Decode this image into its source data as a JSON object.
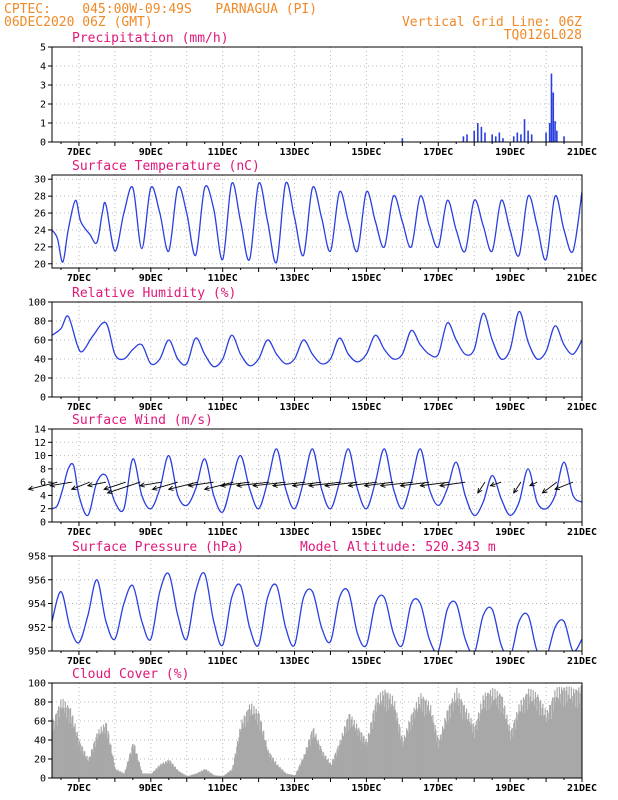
{
  "header": {
    "line1": "CPTEC:    045:00W-09:49S   PARNAGUA (PI)",
    "line2": "06DEC2020 06Z (GMT)",
    "grid_note": "Vertical Grid Line: 06Z",
    "code": "TQ0126L028"
  },
  "x_axis": {
    "start_day": 6.25,
    "end_day": 21.0,
    "major_labels": [
      "7DEC",
      "9DEC",
      "11DEC",
      "13DEC",
      "15DEC",
      "17DEC",
      "19DEC",
      "21DEC"
    ]
  },
  "colors": {
    "line": "#2a3fe0",
    "cloud": "#a8a8a8",
    "header": "#f08a28",
    "title": "#e0187a"
  },
  "chart_data": [
    {
      "type": "bar",
      "title": "Precipitation (mm/h)",
      "ylim": [
        0,
        5
      ],
      "yticks": [
        "0",
        "1",
        "2",
        "3",
        "4",
        "5"
      ],
      "series": [
        {
          "x": [
            16.0,
            17.7,
            17.8,
            18.0,
            18.1,
            18.2,
            18.3,
            18.5,
            18.6,
            18.7,
            18.8,
            19.1,
            19.2,
            19.3,
            19.4,
            19.5,
            19.6,
            20.0,
            20.1,
            20.15,
            20.2,
            20.25,
            20.3,
            20.5
          ],
          "values": [
            0.2,
            0.3,
            0.4,
            0.6,
            1.0,
            0.8,
            0.5,
            0.4,
            0.3,
            0.5,
            0.2,
            0.3,
            0.5,
            0.4,
            1.2,
            0.6,
            0.4,
            0.5,
            1.0,
            3.6,
            2.6,
            1.1,
            0.6,
            0.3
          ]
        }
      ]
    },
    {
      "type": "line",
      "title": "Surface Temperature (nC)",
      "ylim": [
        19.5,
        30.5
      ],
      "yticks": [
        "20",
        "22",
        "24",
        "26",
        "28",
        "30"
      ],
      "series": [
        {
          "x": [
            6.25,
            6.4,
            6.55,
            6.7,
            6.9,
            7.05,
            7.3,
            7.5,
            7.65,
            7.75,
            8.0,
            8.25,
            8.5,
            8.75,
            9.0,
            9.25,
            9.5,
            9.75,
            10.0,
            10.25,
            10.5,
            10.75,
            11.0,
            11.25,
            11.5,
            11.75,
            12.0,
            12.25,
            12.5,
            12.75,
            13.0,
            13.25,
            13.5,
            13.75,
            14.0,
            14.25,
            14.5,
            14.75,
            15.0,
            15.25,
            15.5,
            15.75,
            16.0,
            16.25,
            16.5,
            16.75,
            17.0,
            17.25,
            17.5,
            17.75,
            18.0,
            18.25,
            18.5,
            18.75,
            19.0,
            19.25,
            19.5,
            19.75,
            20.0,
            20.25,
            20.5,
            20.75,
            21.0
          ],
          "values": [
            24.0,
            23.0,
            20.2,
            24.0,
            27.5,
            25.0,
            23.5,
            22.5,
            26.0,
            27.0,
            21.5,
            26.0,
            29.0,
            21.8,
            29.0,
            26.0,
            21.5,
            29.0,
            26.0,
            21.0,
            29.0,
            26.5,
            20.5,
            29.5,
            25.0,
            20.5,
            29.5,
            25.0,
            20.2,
            29.5,
            25.5,
            21.0,
            29.0,
            25.5,
            21.5,
            28.5,
            25.0,
            21.5,
            28.5,
            25.0,
            22.0,
            28.0,
            25.0,
            22.0,
            28.0,
            24.5,
            22.0,
            27.5,
            24.0,
            21.5,
            27.5,
            24.5,
            21.5,
            27.5,
            24.0,
            21.0,
            28.0,
            24.5,
            20.5,
            28.0,
            24.0,
            21.5,
            28.5
          ]
        }
      ]
    },
    {
      "type": "line",
      "title": "Relative Humidity (%)",
      "ylim": [
        0,
        100
      ],
      "yticks": [
        "0",
        "20",
        "40",
        "60",
        "80",
        "100"
      ],
      "series": [
        {
          "x": [
            6.25,
            6.5,
            6.7,
            6.95,
            7.1,
            7.4,
            7.75,
            8.0,
            8.25,
            8.5,
            8.75,
            9.0,
            9.25,
            9.5,
            9.75,
            10.0,
            10.25,
            10.5,
            10.75,
            11.0,
            11.25,
            11.5,
            11.75,
            12.0,
            12.25,
            12.5,
            12.75,
            13.0,
            13.25,
            13.5,
            13.75,
            14.0,
            14.25,
            14.5,
            14.75,
            15.0,
            15.25,
            15.5,
            15.75,
            16.0,
            16.25,
            16.5,
            16.75,
            17.0,
            17.25,
            17.5,
            17.75,
            18.0,
            18.25,
            18.5,
            18.75,
            19.0,
            19.25,
            19.5,
            19.75,
            20.0,
            20.25,
            20.5,
            20.75,
            21.0
          ],
          "values": [
            65,
            72,
            85,
            55,
            48,
            65,
            78,
            45,
            40,
            50,
            55,
            35,
            40,
            60,
            40,
            35,
            62,
            45,
            32,
            40,
            65,
            45,
            33,
            40,
            60,
            45,
            35,
            40,
            60,
            45,
            35,
            40,
            62,
            45,
            37,
            45,
            65,
            50,
            40,
            45,
            70,
            55,
            45,
            45,
            78,
            60,
            45,
            50,
            88,
            60,
            40,
            50,
            90,
            58,
            40,
            48,
            75,
            55,
            45,
            60
          ]
        }
      ]
    },
    {
      "type": "line",
      "title": "Surface Wind (m/s)",
      "ylim": [
        0,
        14
      ],
      "yticks": [
        "0",
        "2",
        "4",
        "6",
        "8",
        "10",
        "12",
        "14"
      ],
      "series": [
        {
          "x": [
            6.25,
            6.4,
            6.55,
            6.7,
            6.85,
            7.0,
            7.25,
            7.5,
            7.75,
            8.0,
            8.25,
            8.5,
            8.75,
            9.0,
            9.25,
            9.5,
            9.75,
            10.0,
            10.25,
            10.5,
            10.75,
            11.0,
            11.25,
            11.5,
            11.75,
            12.0,
            12.25,
            12.5,
            12.75,
            13.0,
            13.25,
            13.5,
            13.75,
            14.0,
            14.25,
            14.5,
            14.75,
            15.0,
            15.25,
            15.5,
            15.75,
            16.0,
            16.25,
            16.5,
            16.75,
            17.0,
            17.25,
            17.5,
            17.75,
            18.0,
            18.25,
            18.5,
            18.75,
            19.0,
            19.25,
            19.5,
            19.75,
            20.0,
            20.25,
            20.5,
            20.75,
            21.0
          ],
          "values": [
            2.0,
            2.5,
            5.0,
            8.0,
            8.5,
            4.0,
            1.0,
            6.0,
            7.0,
            3.0,
            2.0,
            9.5,
            4.0,
            2.0,
            5.0,
            10.0,
            4.0,
            2.5,
            5.0,
            9.5,
            4.0,
            1.5,
            6.0,
            10.0,
            5.0,
            2.0,
            6.0,
            11.0,
            5.0,
            2.0,
            6.0,
            11.0,
            5.0,
            2.0,
            6.0,
            11.0,
            5.0,
            2.0,
            6.0,
            11.0,
            5.0,
            2.0,
            6.0,
            11.0,
            5.0,
            2.5,
            5.0,
            9.0,
            4.0,
            1.0,
            3.0,
            7.0,
            3.5,
            1.0,
            3.0,
            8.0,
            3.0,
            2.0,
            4.0,
            9.0,
            4.0,
            3.0
          ]
        }
      ],
      "wind_vectors": {
        "x": [
          6.4,
          6.8,
          7.3,
          7.75,
          8.3,
          8.7,
          9.3,
          9.75,
          10.3,
          10.75,
          11.3,
          11.75,
          12.3,
          12.75,
          13.3,
          13.75,
          14.3,
          14.75,
          15.3,
          15.75,
          16.3,
          16.75,
          17.3,
          17.75,
          18.3,
          18.75,
          19.3,
          19.75,
          20.3,
          20.75
        ],
        "u": [
          -8,
          -6,
          -5,
          -5,
          -6,
          -9,
          -6,
          -7,
          -8,
          -7,
          -8,
          -8,
          -9,
          -9,
          -9,
          -8,
          -9,
          -9,
          -8,
          -8,
          -9,
          -8,
          -8,
          -7,
          -2,
          -3,
          -2,
          -2,
          -4,
          -5
        ],
        "v": [
          -2,
          -1,
          -2,
          -1,
          -2,
          -3,
          -1,
          -2,
          -2,
          -1,
          -2,
          -1,
          -1,
          -1,
          -1,
          -1,
          -1,
          -1,
          -1,
          -1,
          -1,
          -1,
          -1,
          -1,
          -3,
          -1,
          -3,
          -1,
          -3,
          -2
        ]
      }
    },
    {
      "type": "line",
      "title": "Surface Pressure (hPa)",
      "subtitle": "Model Altitude: 520.343 m",
      "ylim": [
        950,
        958
      ],
      "yticks": [
        "950",
        "952",
        "954",
        "956",
        "958"
      ],
      "series": [
        {
          "x": [
            6.25,
            6.5,
            6.75,
            7.0,
            7.25,
            7.5,
            7.75,
            8.0,
            8.25,
            8.5,
            8.75,
            9.0,
            9.25,
            9.5,
            9.75,
            10.0,
            10.25,
            10.5,
            10.75,
            11.0,
            11.25,
            11.5,
            11.75,
            12.0,
            12.25,
            12.5,
            12.75,
            13.0,
            13.25,
            13.5,
            13.75,
            14.0,
            14.25,
            14.5,
            14.75,
            15.0,
            15.25,
            15.5,
            15.75,
            16.0,
            16.25,
            16.5,
            16.75,
            17.0,
            17.25,
            17.5,
            17.75,
            18.0,
            18.25,
            18.5,
            18.75,
            19.0,
            19.25,
            19.5,
            19.75,
            20.0,
            20.25,
            20.5,
            20.75,
            21.0
          ],
          "values": [
            952.5,
            955.0,
            952.0,
            950.7,
            953.0,
            956.0,
            952.5,
            951.0,
            954.0,
            955.5,
            952.5,
            951.0,
            955.0,
            956.5,
            953.0,
            951.0,
            955.0,
            956.5,
            952.5,
            950.5,
            954.5,
            955.5,
            952.0,
            950.5,
            954.5,
            955.5,
            952.0,
            950.5,
            954.5,
            955.0,
            952.0,
            950.8,
            954.5,
            955.0,
            951.5,
            950.5,
            954.0,
            954.5,
            951.5,
            950.5,
            954.0,
            954.0,
            951.0,
            950.0,
            953.5,
            954.0,
            951.0,
            949.8,
            953.0,
            953.5,
            950.5,
            949.5,
            952.5,
            953.0,
            950.0,
            949.5,
            952.0,
            952.5,
            950.0,
            951.0
          ]
        }
      ]
    },
    {
      "type": "area",
      "title": "Cloud Cover (%)",
      "ylim": [
        0,
        100
      ],
      "yticks": [
        "0",
        "20",
        "40",
        "60",
        "80",
        "100"
      ],
      "series": [
        {
          "x": [
            6.25,
            6.5,
            6.75,
            7.0,
            7.25,
            7.5,
            7.75,
            8.0,
            8.25,
            8.5,
            8.75,
            9.0,
            9.25,
            9.5,
            9.75,
            10.0,
            10.25,
            10.5,
            10.75,
            11.0,
            11.25,
            11.5,
            11.75,
            12.0,
            12.25,
            12.5,
            12.75,
            13.0,
            13.25,
            13.5,
            13.75,
            14.0,
            14.25,
            14.5,
            14.75,
            15.0,
            15.25,
            15.5,
            15.75,
            16.0,
            16.25,
            16.5,
            16.75,
            17.0,
            17.25,
            17.5,
            17.75,
            18.0,
            18.25,
            18.5,
            18.75,
            19.0,
            19.25,
            19.5,
            19.75,
            20.0,
            20.25,
            20.5,
            20.75,
            21.0
          ],
          "values": [
            60,
            85,
            75,
            40,
            20,
            50,
            60,
            10,
            5,
            40,
            5,
            5,
            15,
            20,
            8,
            2,
            5,
            10,
            3,
            2,
            10,
            60,
            80,
            70,
            30,
            15,
            5,
            3,
            25,
            55,
            30,
            15,
            40,
            70,
            55,
            40,
            85,
            95,
            85,
            40,
            70,
            90,
            80,
            40,
            75,
            95,
            75,
            55,
            90,
            95,
            90,
            50,
            80,
            95,
            90,
            70,
            95,
            98,
            95,
            98
          ]
        }
      ]
    }
  ]
}
